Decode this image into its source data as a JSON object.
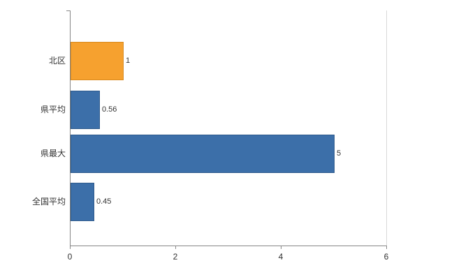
{
  "chart_data": {
    "type": "bar",
    "orientation": "horizontal",
    "title": "",
    "xlabel": "",
    "ylabel": "",
    "categories": [
      "北区",
      "県平均",
      "県最大",
      "全国平均"
    ],
    "values": [
      1,
      0.56,
      5,
      0.45
    ],
    "value_labels": [
      "1",
      "0.56",
      "5",
      "0.45"
    ],
    "bar_colors": [
      "#f6a12f",
      "#3c6fa9",
      "#3c6fa9",
      "#3c6fa9"
    ],
    "bar_border_colors": [
      "#d98a1f",
      "#2e5a8c",
      "#2e5a8c",
      "#2e5a8c"
    ],
    "xlim": [
      0,
      6
    ],
    "x_ticks": [
      0,
      2,
      4,
      6
    ],
    "x_tick_labels": [
      "0",
      "2",
      "4",
      "6"
    ],
    "grid": false,
    "legend": "none",
    "background_color": "#ffffff",
    "axis_color": "#888888"
  }
}
